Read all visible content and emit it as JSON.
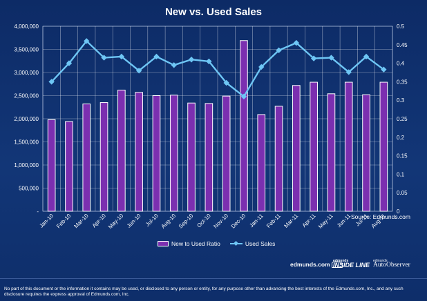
{
  "chart_data": {
    "type": "bar+line",
    "title": "New vs. Used Sales",
    "categories": [
      "Jan-10",
      "Feb-10",
      "Mar-10",
      "Apr-10",
      "May-10",
      "Jun-10",
      "Jul-10",
      "Aug-10",
      "Sep-10",
      "Oct-10",
      "Nov-10",
      "Dec-10",
      "Jan-11",
      "Feb-11",
      "Mar-11",
      "Apr-11",
      "May-11",
      "Jun-11",
      "Jul-11",
      "Aug-11"
    ],
    "series": [
      {
        "name": "New to Used Ratio",
        "type": "bar",
        "axis": "left",
        "color": "#7b2fb0",
        "values": [
          1980000,
          1940000,
          2320000,
          2350000,
          2620000,
          2570000,
          2500000,
          2510000,
          2340000,
          2330000,
          2490000,
          3690000,
          2090000,
          2270000,
          2720000,
          2790000,
          2540000,
          2790000,
          2520000,
          2790000
        ]
      },
      {
        "name": "Used Sales",
        "type": "line",
        "axis": "right",
        "color": "#6ec6f5",
        "values": [
          0.35,
          0.4,
          0.46,
          0.415,
          0.418,
          0.38,
          0.418,
          0.395,
          0.41,
          0.405,
          0.347,
          0.31,
          0.39,
          0.435,
          0.455,
          0.413,
          0.415,
          0.376,
          0.418,
          0.383
        ]
      }
    ],
    "y_left": {
      "min": 0,
      "max": 4000000,
      "ticks": [
        0,
        500000,
        1000000,
        1500000,
        2000000,
        2500000,
        3000000,
        3500000,
        4000000
      ],
      "tick_labels": [
        "-",
        "500,000",
        "1,000,000",
        "1,500,000",
        "2,000,000",
        "2,500,000",
        "3,000,000",
        "3,500,000",
        "4,000,000"
      ]
    },
    "y_right": {
      "min": 0,
      "max": 0.5,
      "ticks": [
        0,
        0.05,
        0.1,
        0.15,
        0.2,
        0.25,
        0.3,
        0.35,
        0.4,
        0.45,
        0.5
      ],
      "tick_labels": [
        "0",
        "0.05",
        "0.1",
        "0.15",
        "0.2",
        "0.25",
        "0.3",
        "0.35",
        "0.4",
        "0.45",
        "0.5"
      ]
    },
    "grid": true,
    "legend_position": "bottom-center",
    "source": "Source: Edmunds.com"
  },
  "logos": {
    "edmunds": "edmunds.com",
    "insideline_small": "edmunds",
    "insideline": "INSIDE LINE",
    "autoobserver_small": "edmunds",
    "autoobserver": "AutoObserver"
  },
  "disclaimer": "No part of this document or the information it contains may be used, or disclosed to any person or entity, for any purpose other than advancing the best interests of the Edmunds.com, Inc., and any such disclosure requires the express approval of Edmunds.com, Inc.",
  "colors": {
    "background": "#0f2f6e",
    "grid": "#ffffff",
    "bar": "#7b2fb0",
    "line": "#6ec6f5"
  }
}
